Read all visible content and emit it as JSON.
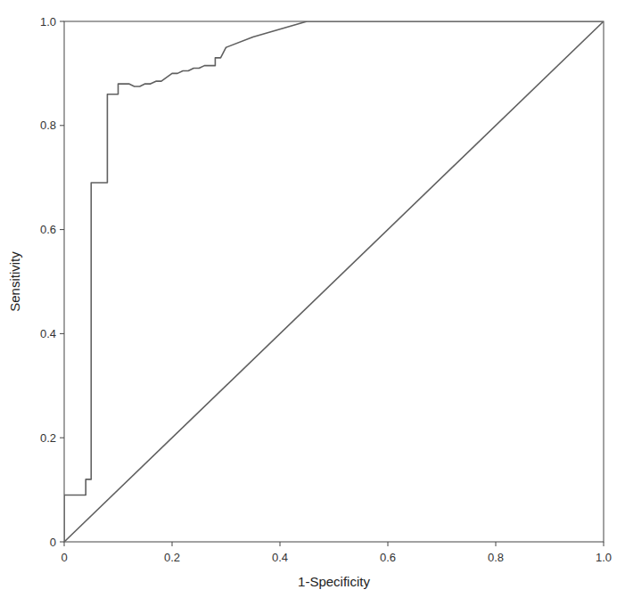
{
  "chart_data": {
    "type": "line",
    "xlabel": "1-Specificity",
    "ylabel": "Sensitivity",
    "series": [
      {
        "x": [
          0.0,
          0.0,
          0.04,
          0.04,
          0.05,
          0.05,
          0.05,
          0.08,
          0.08,
          0.1,
          0.1,
          0.12,
          0.13,
          0.14,
          0.15,
          0.16,
          0.17,
          0.18,
          0.2,
          0.21,
          0.22,
          0.23,
          0.24,
          0.25,
          0.26,
          0.27,
          0.28,
          0.28,
          0.29,
          0.3,
          0.35,
          0.45,
          1.0
        ],
        "values": [
          0.0,
          0.09,
          0.09,
          0.12,
          0.12,
          0.14,
          0.69,
          0.69,
          0.86,
          0.86,
          0.88,
          0.88,
          0.875,
          0.875,
          0.88,
          0.88,
          0.885,
          0.885,
          0.9,
          0.9,
          0.905,
          0.905,
          0.91,
          0.91,
          0.915,
          0.915,
          0.915,
          0.93,
          0.93,
          0.95,
          0.97,
          1.0,
          1.0
        ],
        "color": "#606060"
      },
      {
        "x": [
          0,
          1
        ],
        "values": [
          0,
          1
        ],
        "color": "#606060"
      }
    ],
    "xlim": [
      0,
      1.0
    ],
    "ylim": [
      0,
      1.0
    ],
    "xticks": [
      0,
      0.2,
      0.4,
      0.6,
      0.8,
      {
        "value": 1.0,
        "label": "1.0"
      }
    ],
    "yticks": [
      0,
      0.2,
      0.4,
      0.6,
      0.8,
      {
        "value": 1.0,
        "label": "1.0"
      }
    ],
    "grid": false
  }
}
